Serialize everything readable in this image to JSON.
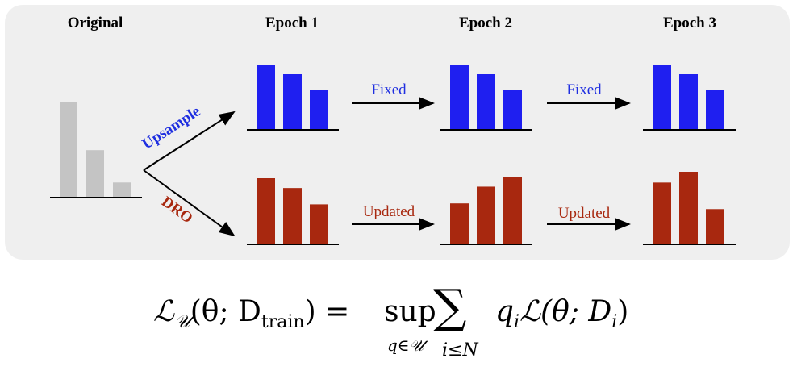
{
  "headers": {
    "original": "Original",
    "epoch1": "Epoch 1",
    "epoch2": "Epoch 2",
    "epoch3": "Epoch 3"
  },
  "branches": {
    "upsample": "Upsample",
    "dro": "DRO"
  },
  "transitions": {
    "top_1": "Fixed",
    "top_2": "Fixed",
    "bottom_1": "Updated",
    "bottom_2": "Updated"
  },
  "colors": {
    "panel": "#efefef",
    "original": "#c4c4c4",
    "upsample": "#1f1ff0",
    "dro": "#a8280f",
    "upsample_label": "#1f2fe0",
    "dro_label": "#a8280f"
  },
  "histograms": {
    "original": [
      1.0,
      0.49,
      0.15
    ],
    "upsample_epoch1": [
      1.0,
      0.85,
      0.6
    ],
    "upsample_epoch2": [
      1.0,
      0.85,
      0.6
    ],
    "upsample_epoch3": [
      1.0,
      0.85,
      0.6
    ],
    "dro_epoch1": [
      1.0,
      0.85,
      0.6
    ],
    "dro_epoch2": [
      0.6,
      0.85,
      1.0
    ],
    "dro_epoch3": [
      0.85,
      1.0,
      0.48
    ]
  },
  "formula": {
    "lhs_L": "ℒ",
    "lhs_U": "𝒰",
    "lhs_args": "(θ; D",
    "lhs_sub": "train",
    "lhs_close": ") =",
    "sup": "sup",
    "sup_sub": "q∈𝒰",
    "sum": "∑",
    "sum_sub": "i≤N",
    "rhs": "q",
    "rhs_i": "i",
    "rhs_L": "ℒ(θ; D",
    "rhs_sub": "i",
    "rhs_close": ")"
  }
}
